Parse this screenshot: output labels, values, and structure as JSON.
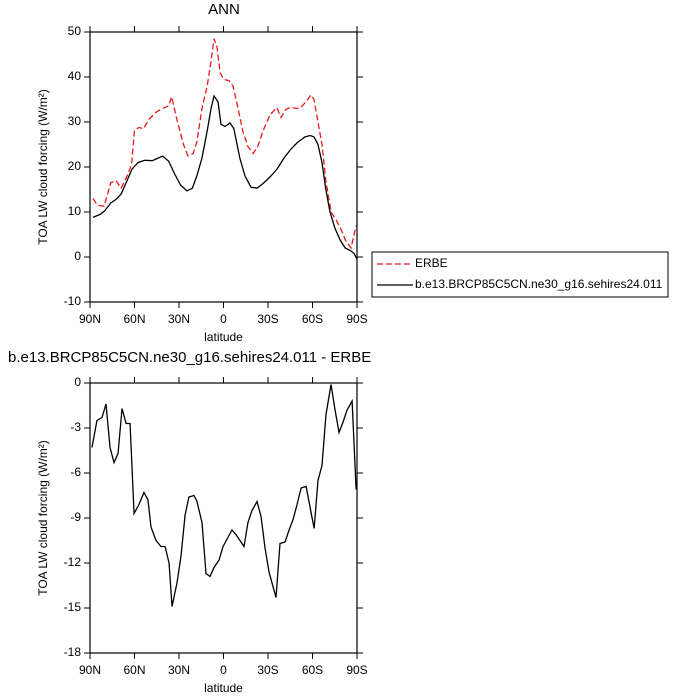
{
  "chart_data": [
    {
      "type": "line",
      "title": "ANN",
      "x_label": "latitude",
      "y_label": "TOA LW cloud forcing (W/m²)",
      "xlim": [
        90,
        -90
      ],
      "xticks": [
        {
          "value": 90,
          "label": "90N"
        },
        {
          "value": 60,
          "label": "60N"
        },
        {
          "value": 30,
          "label": "30N"
        },
        0,
        {
          "value": -30,
          "label": "30S"
        },
        {
          "value": -60,
          "label": "60S"
        },
        {
          "value": -90,
          "label": "90S"
        }
      ],
      "ylim": [
        -10,
        50
      ],
      "yticks": [
        -10,
        0,
        10,
        20,
        30,
        40,
        50
      ],
      "legend": "outside-right",
      "series": [
        {
          "name": "ERBE",
          "color": "#e8191b",
          "line_style": "dashed",
          "x": [
            88,
            85,
            80.5,
            76,
            72.5,
            69,
            65,
            62,
            60,
            57,
            54,
            50,
            45,
            41,
            37,
            35,
            31,
            27,
            24,
            20.5,
            18,
            14.5,
            11,
            8.4,
            6.4,
            4.4,
            2.3,
            0,
            -3.7,
            -6.4,
            -9.8,
            -13,
            -16.5,
            -20,
            -23,
            -26.6,
            -31.4,
            -36,
            -38.8,
            -42,
            -45.5,
            -49,
            -52,
            -55.6,
            -59,
            -61,
            -63.7,
            -66.4,
            -69,
            -72.5,
            -76,
            -79,
            -82.6,
            -86,
            -89.4
          ],
          "values": [
            13,
            11.5,
            11.3,
            16.5,
            17,
            15.3,
            18,
            20.5,
            28.2,
            28.8,
            28.5,
            30.7,
            32.3,
            33,
            33.6,
            35.6,
            30,
            25,
            22.5,
            23,
            25.5,
            33,
            38,
            43.5,
            48.5,
            46.7,
            41,
            39.5,
            39.2,
            38,
            33,
            28,
            24.5,
            23,
            24.5,
            28,
            31.6,
            33.2,
            31,
            32.8,
            33.3,
            33,
            33.2,
            34.5,
            36,
            35,
            30,
            25,
            17,
            10,
            8.2,
            6.3,
            3.5,
            2,
            7
          ]
        },
        {
          "name": "b.e13.BRCP85C5CN.ne30_g16.sehires24.011",
          "color": "#000000",
          "line_style": "solid",
          "x": [
            88,
            83,
            80,
            76,
            72.5,
            69,
            65,
            61.7,
            57.6,
            53,
            48,
            44,
            41,
            37,
            33,
            29,
            24.6,
            21,
            18,
            14.5,
            11,
            8.4,
            6.4,
            3.7,
            1.7,
            -1,
            -4.4,
            -7,
            -11,
            -14.5,
            -18.6,
            -22.6,
            -26.6,
            -31.4,
            -36,
            -40.8,
            -45.5,
            -50,
            -55,
            -58.4,
            -61,
            -63.7,
            -66.4,
            -69,
            -71.8,
            -75,
            -78.6,
            -82,
            -85.3,
            -88,
            -90
          ],
          "values": [
            8.8,
            9.5,
            10.3,
            12,
            12.8,
            14,
            17,
            19.5,
            21,
            21.5,
            21.4,
            22,
            22.4,
            21.3,
            18.5,
            16,
            14.7,
            15.3,
            18,
            22,
            28,
            33,
            35.8,
            34.5,
            29.5,
            29,
            29.8,
            28.5,
            22,
            18,
            15.5,
            15.3,
            16.3,
            17.8,
            19.5,
            22,
            24,
            25.5,
            26.7,
            27,
            26.7,
            25,
            21,
            15,
            10,
            6.5,
            3.8,
            2,
            1.5,
            0.8,
            -0.5
          ]
        }
      ]
    },
    {
      "type": "line",
      "title": "b.e13.BRCP85C5CN.ne30_g16.sehires24.011 - ERBE",
      "x_label": "latitude",
      "y_label": "TOA LW cloud forcing (W/m²)",
      "xlim": [
        90,
        -90
      ],
      "xticks": [
        {
          "value": 90,
          "label": "90N"
        },
        {
          "value": 60,
          "label": "60N"
        },
        {
          "value": 30,
          "label": "30N"
        },
        0,
        {
          "value": -30,
          "label": "30S"
        },
        {
          "value": -60,
          "label": "60S"
        },
        {
          "value": -90,
          "label": "90S"
        }
      ],
      "ylim": [
        -18,
        0
      ],
      "yticks": [
        -18,
        -15,
        -12,
        -9,
        -6,
        -3,
        0
      ],
      "series": [
        {
          "color": "#000000",
          "line_style": "solid",
          "x": [
            88.7,
            85.3,
            81.9,
            79.2,
            76.5,
            73.8,
            71.1,
            68.4,
            65.7,
            63,
            60.3,
            57,
            53.6,
            50.9,
            48.9,
            45.5,
            42.1,
            39.4,
            36.7,
            34.7,
            31.3,
            28.6,
            25.9,
            23.3,
            19.9,
            17.9,
            14.5,
            11.8,
            9.1,
            6.4,
            3,
            0.3,
            -3,
            -5.7,
            -8.4,
            -11.1,
            -13.8,
            -16.5,
            -19.2,
            -22.6,
            -25.3,
            -28,
            -30.7,
            -34,
            -35.4,
            -38.1,
            -41.5,
            -44.2,
            -46.9,
            -49.6,
            -52.3,
            -55.7,
            -58.4,
            -61.1,
            -63.7,
            -66.4,
            -69.1,
            -72.5,
            -75.2,
            -77.9,
            -80.6,
            -83.3,
            -86.7,
            -89.4
          ],
          "values": [
            -4.3,
            -2.5,
            -2.3,
            -1.4,
            -4.3,
            -5.3,
            -4.7,
            -1.7,
            -2.7,
            -2.7,
            -8.7,
            -8.1,
            -7.3,
            -7.8,
            -9.6,
            -10.5,
            -10.9,
            -10.9,
            -12,
            -14.9,
            -13.3,
            -11.5,
            -8.8,
            -7.6,
            -7.5,
            -7.9,
            -9.3,
            -12.7,
            -12.9,
            -12.3,
            -11.8,
            -10.9,
            -10.3,
            -9.8,
            -10.1,
            -10.5,
            -10.9,
            -9.3,
            -8.5,
            -7.9,
            -8.9,
            -11,
            -12.6,
            -13.8,
            -14.3,
            -10.7,
            -10.6,
            -9.8,
            -9.1,
            -8.1,
            -7,
            -6.9,
            -8.3,
            -9.7,
            -6.5,
            -5.5,
            -2.1,
            -0.1,
            -1.8,
            -3.3,
            -2.6,
            -1.8,
            -1.2,
            -7.1
          ]
        }
      ]
    }
  ]
}
